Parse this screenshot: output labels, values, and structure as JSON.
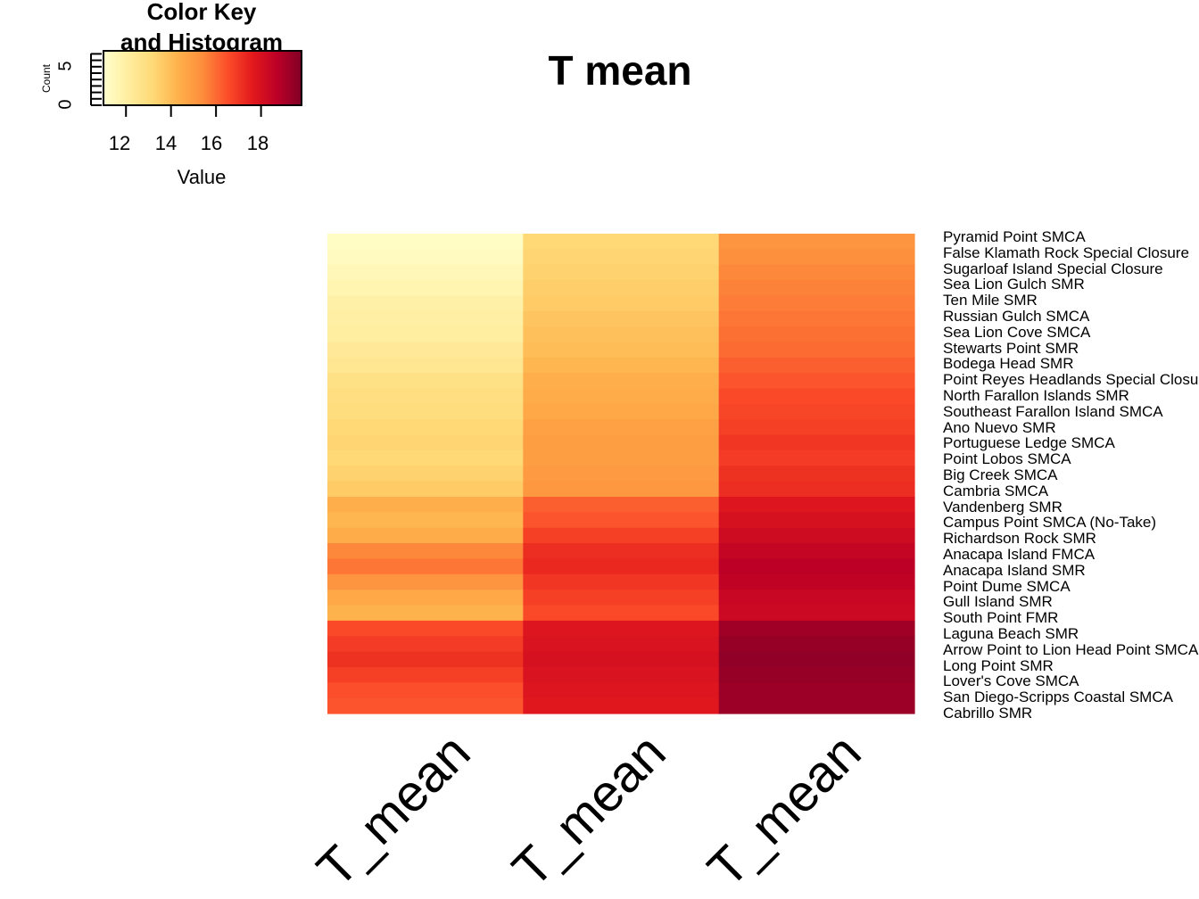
{
  "color_key": {
    "title_line1": "Color Key",
    "title_line2": "and Histogram",
    "xlabel": "Value",
    "ylabel": "Count",
    "x_ticks": [
      "12",
      "14",
      "16",
      "18"
    ],
    "y_ticks": [
      "0",
      "5"
    ],
    "range": [
      11,
      19.8
    ],
    "colors": [
      "#FFFFCC",
      "#FFEDA0",
      "#FED976",
      "#FEB24C",
      "#FD8D3C",
      "#FC4E2A",
      "#E31A1C",
      "#BD0026",
      "#800026"
    ]
  },
  "chart_data": {
    "type": "heatmap",
    "title": "T mean",
    "columns": [
      "T_mean",
      "T_mean",
      "T_mean"
    ],
    "row_labels": [
      "Pyramid Point SMCA",
      "False Klamath Rock Special Closure",
      "Sugarloaf Island Special Closure",
      "Sea Lion Gulch SMR",
      "Ten Mile SMR",
      "Russian Gulch SMCA",
      "Sea Lion Cove SMCA",
      "Stewarts Point SMR",
      "Bodega Head SMR",
      "Point Reyes Headlands Special Closure",
      "North Farallon Islands SMR",
      "Southeast Farallon Island SMCA",
      "Ano Nuevo SMR",
      "Portuguese Ledge SMCA",
      "Point Lobos SMCA",
      "Big Creek SMCA",
      "Cambria SMCA",
      "Vandenberg SMR",
      "Campus Point SMCA (No-Take)",
      "Richardson Rock SMR",
      "Anacapa Island FMCA",
      "Anacapa Island SMR",
      "Point Dume SMCA",
      "Gull Island SMR",
      "South Point FMR",
      "Laguna Beach SMR",
      "Arrow Point to Lion Head Point SMCA",
      "Long Point SMR",
      "Lover's Cove SMCA",
      "San Diego-Scripps Coastal SMCA",
      "Cabrillo SMR"
    ],
    "values": [
      [
        11.2,
        13.2,
        15.2
      ],
      [
        11.3,
        13.3,
        15.3
      ],
      [
        11.5,
        13.4,
        15.5
      ],
      [
        11.7,
        13.5,
        15.6
      ],
      [
        11.9,
        13.6,
        15.7
      ],
      [
        12.0,
        13.8,
        15.8
      ],
      [
        12.1,
        13.9,
        15.9
      ],
      [
        12.3,
        14.0,
        16.0
      ],
      [
        12.5,
        14.2,
        16.2
      ],
      [
        12.8,
        14.4,
        16.4
      ],
      [
        12.9,
        14.5,
        16.6
      ],
      [
        13.0,
        14.6,
        16.7
      ],
      [
        13.2,
        14.8,
        16.8
      ],
      [
        13.3,
        14.9,
        17.0
      ],
      [
        13.2,
        14.9,
        16.9
      ],
      [
        13.4,
        15.0,
        17.1
      ],
      [
        13.6,
        15.1,
        17.2
      ],
      [
        14.4,
        16.2,
        17.8
      ],
      [
        14.2,
        16.4,
        18.0
      ],
      [
        14.5,
        16.8,
        18.2
      ],
      [
        15.5,
        17.2,
        18.5
      ],
      [
        15.8,
        17.3,
        18.7
      ],
      [
        15.2,
        17.0,
        18.6
      ],
      [
        14.6,
        16.8,
        18.4
      ],
      [
        14.3,
        16.6,
        18.3
      ],
      [
        16.6,
        17.8,
        19.2
      ],
      [
        16.9,
        17.9,
        19.4
      ],
      [
        17.1,
        18.0,
        19.5
      ],
      [
        16.8,
        17.9,
        19.4
      ],
      [
        16.5,
        17.8,
        19.3
      ],
      [
        16.4,
        17.7,
        19.3
      ]
    ],
    "range": [
      11,
      19.8
    ]
  }
}
